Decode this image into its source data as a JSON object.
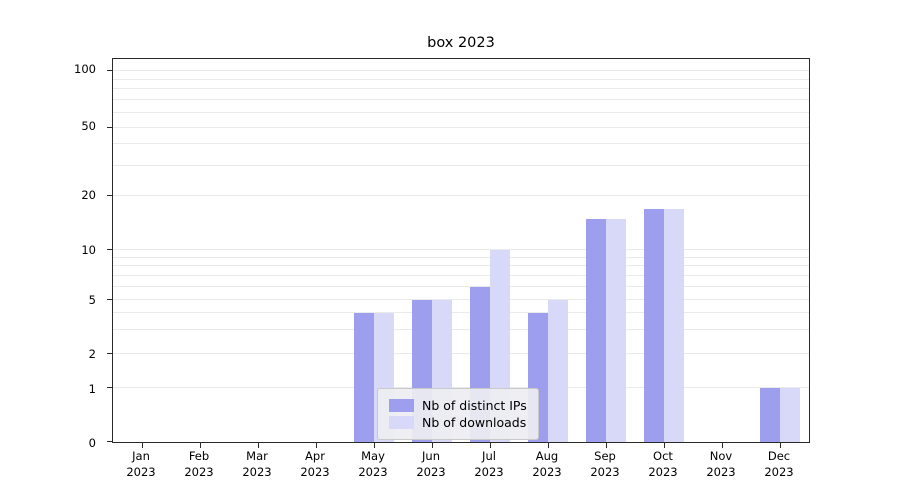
{
  "chart_data": {
    "type": "bar",
    "title": "box 2023",
    "categories": [
      "Jan 2023",
      "Feb 2023",
      "Mar 2023",
      "Apr 2023",
      "May 2023",
      "Jun 2023",
      "Jul 2023",
      "Aug 2023",
      "Sep 2023",
      "Oct 2023",
      "Nov 2023",
      "Dec 2023"
    ],
    "series": [
      {
        "name": "Nb of distinct IPs",
        "color": "#9e9eee",
        "values": [
          0,
          0,
          0,
          0,
          4,
          5,
          6,
          4,
          15,
          17,
          0,
          1
        ]
      },
      {
        "name": "Nb of downloads",
        "color": "#d8d8f8",
        "values": [
          0,
          0,
          0,
          0,
          4,
          5,
          10,
          5,
          15,
          17,
          0,
          1
        ]
      }
    ],
    "yscale": "symlog",
    "yticks": [
      0,
      1,
      2,
      5,
      10,
      20,
      50,
      100
    ],
    "gridlines": [
      1,
      2,
      3,
      4,
      5,
      6,
      7,
      8,
      9,
      10,
      20,
      30,
      40,
      50,
      60,
      70,
      80,
      90,
      100
    ],
    "ylim": [
      0,
      120
    ],
    "legend_position": "lower center",
    "grid": "on"
  }
}
